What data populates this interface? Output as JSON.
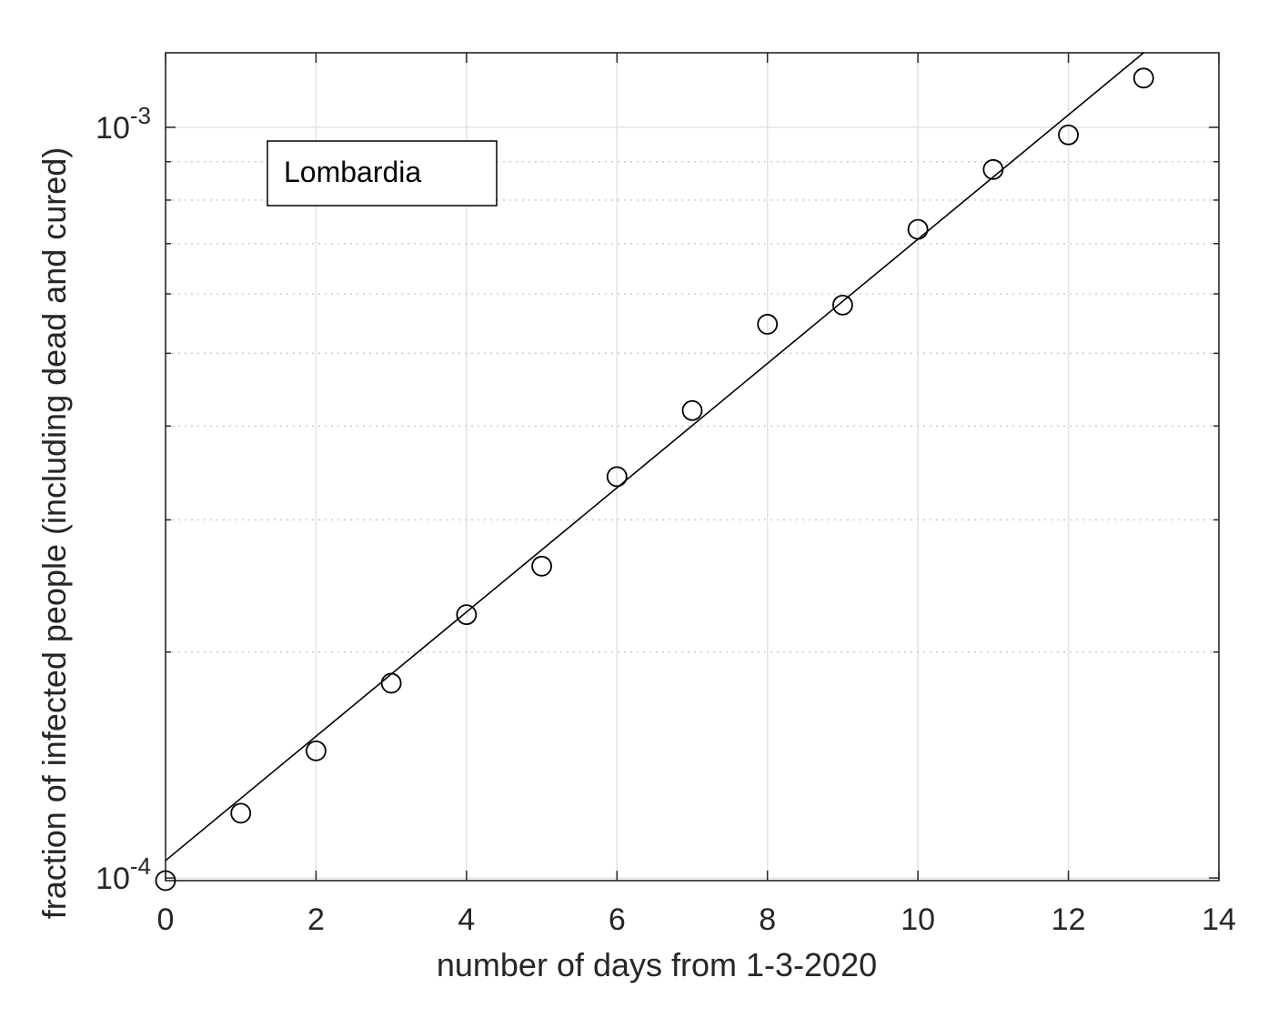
{
  "chart_data": {
    "type": "scatter",
    "title": "",
    "xlabel": "number of days from 1-3-2020",
    "ylabel": "fraction of infected people (including dead and cured)",
    "xlim": [
      0,
      14
    ],
    "ylim": [
      9.92e-05,
      0.001257
    ],
    "yscale": "log",
    "grid": true,
    "x_ticks": [
      0,
      2,
      4,
      6,
      8,
      10,
      12,
      14
    ],
    "y_ticks": [
      {
        "value": 0.0001,
        "base": "10",
        "exponent": "-4"
      },
      {
        "value": 0.001,
        "base": "10",
        "exponent": "-3"
      }
    ],
    "legend": {
      "label": "Lombardia",
      "location": "top-left",
      "box": true
    },
    "series": [
      {
        "kind": "scatter",
        "marker": "circle-open",
        "color": "#000000",
        "x": [
          0,
          1,
          2,
          3,
          4,
          5,
          6,
          7,
          8,
          9,
          10,
          11,
          12,
          13
        ],
        "y": [
          9.92e-05,
          0.000122,
          0.0001477,
          0.0001818,
          0.0002243,
          0.0002603,
          0.0003425,
          0.0004195,
          0.0005466,
          0.0005797,
          0.0007313,
          0.0008787,
          0.0009771,
          0.0011631
        ]
      },
      {
        "kind": "line",
        "color": "#000000",
        "x": [
          0,
          13
        ],
        "y": [
          0.0001055,
          0.001257
        ]
      }
    ],
    "colors": {
      "axes": "#262626",
      "grid": "#e3e3e3",
      "markers": "#000000",
      "fit_line": "#000000"
    }
  }
}
